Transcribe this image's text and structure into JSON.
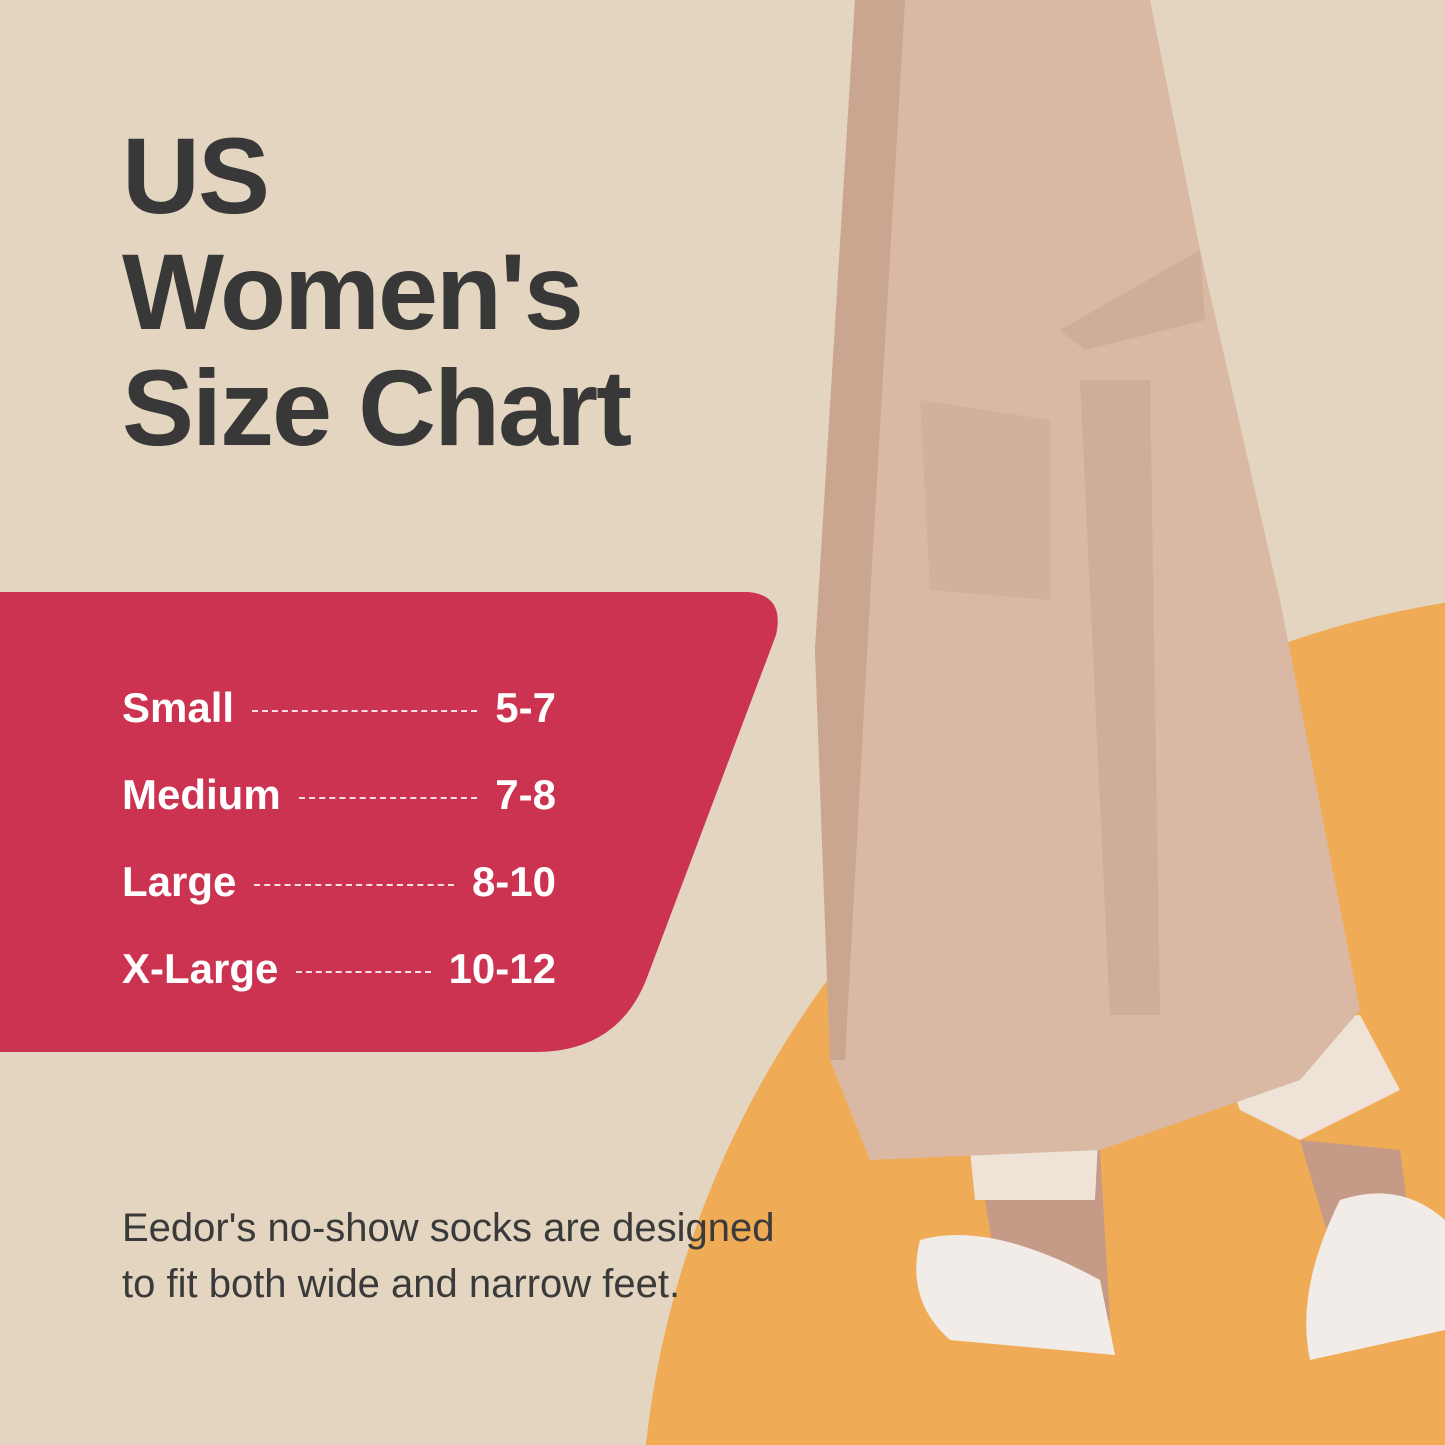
{
  "title": {
    "line1": "US",
    "line2": "Women's",
    "line3": "Size Chart"
  },
  "sizes": [
    {
      "label": "Small",
      "value": "5-7"
    },
    {
      "label": "Medium",
      "value": "7-8"
    },
    {
      "label": "Large",
      "value": "8-10"
    },
    {
      "label": "X-Large",
      "value": "10-12"
    }
  ],
  "description": {
    "line1": "Eedor's no-show socks are designed",
    "line2": "to fit both wide and narrow feet."
  },
  "colors": {
    "background": "#e3d5c0",
    "panel": "#cc3350",
    "accent": "#efab55",
    "text": "#383838",
    "coat": "#d9b9a3"
  }
}
